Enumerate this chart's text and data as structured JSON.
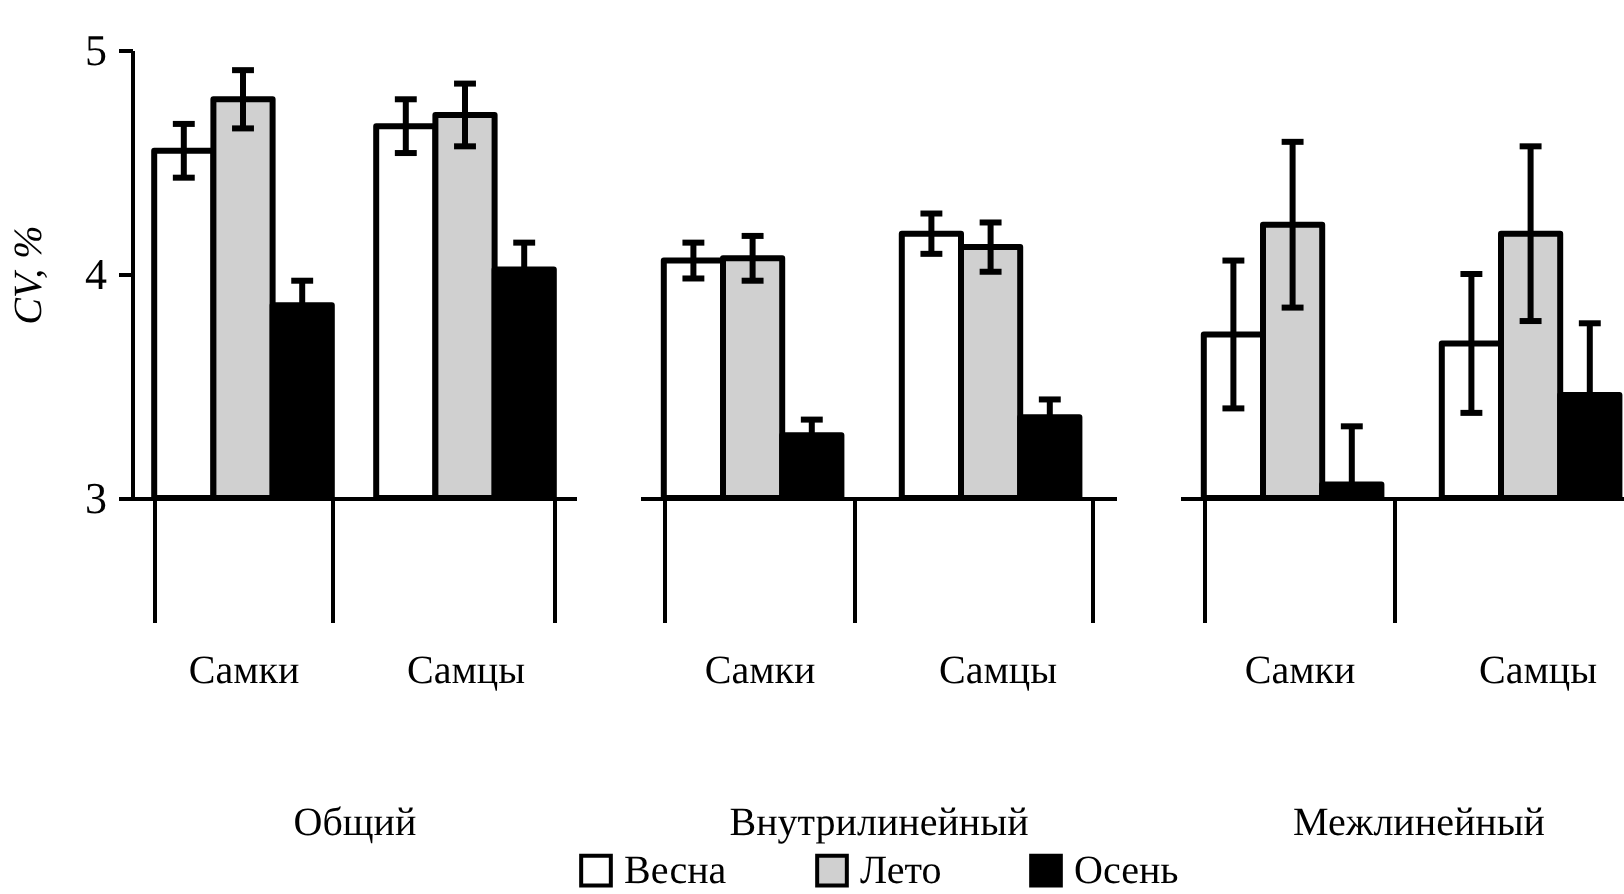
{
  "chart_data": [
    {
      "type": "bar",
      "xlabel": "Общий",
      "ylabel": "CV, %",
      "categories": [
        "Самки",
        "Самцы"
      ],
      "ylim": [
        3,
        5
      ],
      "yticks": [
        3,
        4,
        5
      ],
      "series": [
        {
          "name": "Весна",
          "color": "#ffffff",
          "values": [
            4.55,
            4.66
          ],
          "errors": [
            0.12,
            0.12
          ]
        },
        {
          "name": "Лето",
          "color": "#d0d0d0",
          "values": [
            4.78,
            4.71
          ],
          "errors": [
            0.13,
            0.14
          ]
        },
        {
          "name": "Осень",
          "color": "#000000",
          "values": [
            3.86,
            4.02
          ],
          "errors": [
            0.11,
            0.12
          ]
        }
      ]
    },
    {
      "type": "bar",
      "xlabel": "Внутрилинейный",
      "categories": [
        "Самки",
        "Самцы"
      ],
      "ylim": [
        3,
        5
      ],
      "tick_labels": "x",
      "legend": "bottom",
      "series": [
        {
          "name": "Весна",
          "color": "#ffffff",
          "values": [
            4.06,
            4.18
          ],
          "errors": [
            0.08,
            0.09
          ]
        },
        {
          "name": "Лето",
          "color": "#d0d0d0",
          "values": [
            4.07,
            4.12
          ],
          "errors": [
            0.1,
            0.11
          ]
        },
        {
          "name": "Осень",
          "color": "#000000",
          "values": [
            3.28,
            3.36
          ],
          "errors": [
            0.07,
            0.08
          ]
        }
      ]
    },
    {
      "type": "bar",
      "xlabel": "Межлинейный",
      "categories": [
        "Самки",
        "Самцы"
      ],
      "ylim": [
        3,
        5
      ],
      "tick_labels": "x",
      "series": [
        {
          "name": "Весна",
          "color": "#ffffff",
          "values": [
            3.73,
            3.69
          ],
          "errors": [
            0.33,
            0.31
          ]
        },
        {
          "name": "Лето",
          "color": "#d0d0d0",
          "values": [
            4.22,
            4.18
          ],
          "errors": [
            0.37,
            0.39
          ]
        },
        {
          "name": "Осень",
          "color": "#000000",
          "values": [
            3.06,
            3.46
          ],
          "errors": [
            [
              3.0,
              3.32
            ],
            0.32
          ]
        }
      ]
    }
  ]
}
